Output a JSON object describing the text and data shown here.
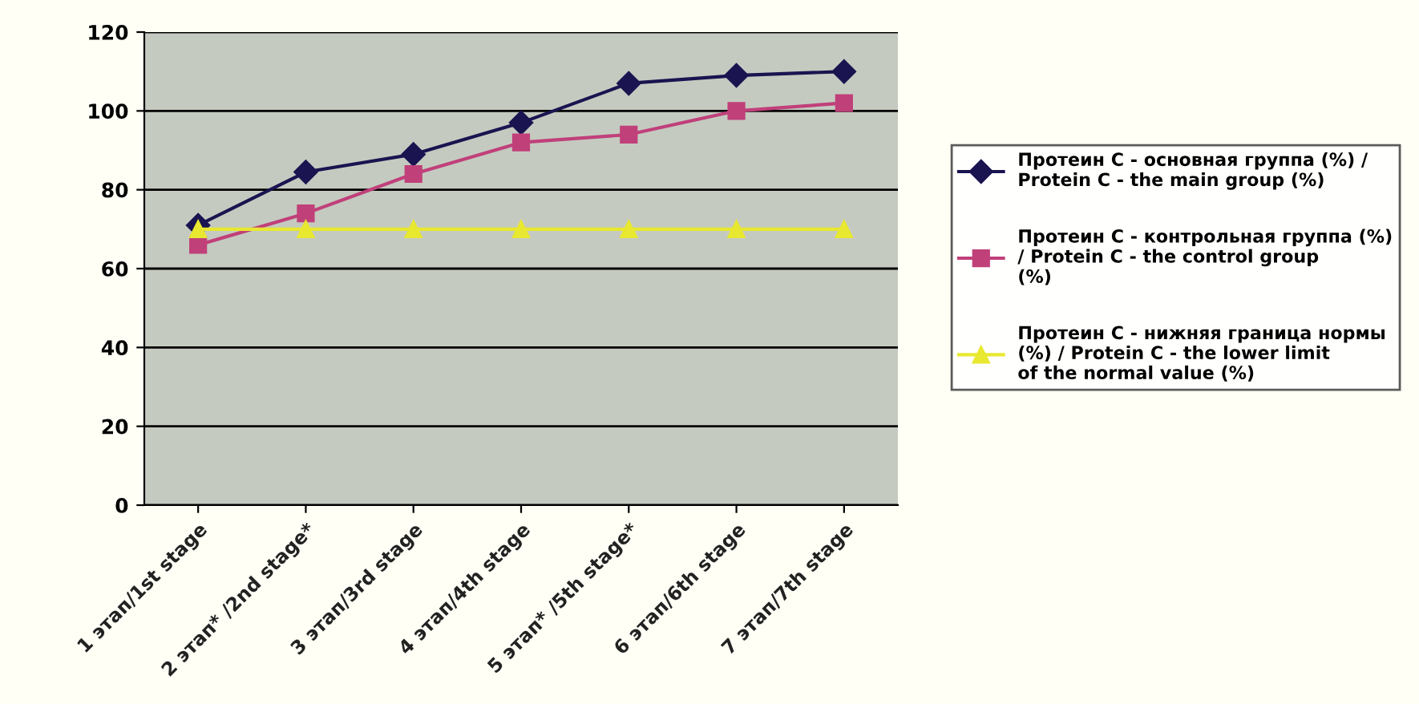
{
  "chart_data": {
    "type": "line",
    "categories": [
      "1 этап/1st stage",
      "2 этап* /2nd stage*",
      "3 этап/3rd stage",
      "4 этап/4th stage",
      "5 этап* /5th stage*",
      "6 этап/6th stage",
      "7 этап/7th stage"
    ],
    "series": [
      {
        "name": "Протеин С - основная группа (%) / Protein C - the main group (%)",
        "color": "#1a1450",
        "marker": "diamond",
        "values": [
          71,
          84.5,
          89,
          97,
          107,
          109,
          110
        ]
      },
      {
        "name": "Протеин С - контрольная группа (%) / Protein C - the control group (%)",
        "color": "#c0407a",
        "marker": "square",
        "values": [
          66,
          74,
          84,
          92,
          94,
          100,
          102
        ]
      },
      {
        "name": "Протеин С - нижняя граница нормы (%) / Protein C - the lower limit of the normal value (%)",
        "color": "#e8e830",
        "marker": "triangle",
        "values": [
          70,
          70,
          70,
          70,
          70,
          70,
          70
        ]
      }
    ],
    "ylim": [
      0,
      120
    ],
    "yticks": [
      0,
      20,
      40,
      60,
      80,
      100,
      120
    ],
    "grid": "y",
    "legend": "right",
    "line_style": "solid"
  }
}
